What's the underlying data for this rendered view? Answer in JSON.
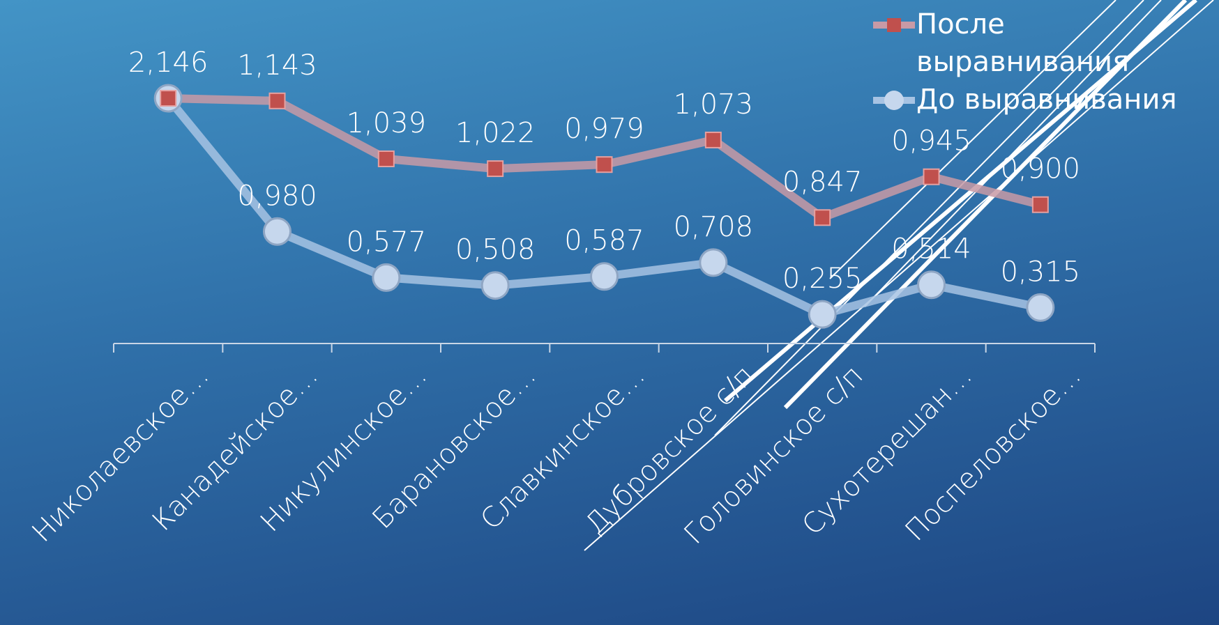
{
  "chart_data": {
    "type": "line",
    "stacked": true,
    "categories": [
      "Николаевское…",
      "Канадейское…",
      "Никулинское…",
      "Барановское…",
      "Славкинское…",
      "Дубровское с/п",
      "Головинское с/п",
      "Сухотерешан…",
      "Поспеловское…"
    ],
    "series": [
      {
        "name": "До выравнивания",
        "color": "#c6d7ed",
        "line_color": "#a7c3e3",
        "values": [
          2.146,
          0.98,
          0.577,
          0.508,
          0.587,
          0.708,
          0.255,
          0.514,
          0.315
        ],
        "value_labels": [
          "2,146",
          "0,980",
          "0,577",
          "0,508",
          "0,587",
          "0,708",
          "0,255",
          "0,514",
          "0,315"
        ]
      },
      {
        "name": "После выравнивания",
        "color": "#c0504d",
        "line_color": "#c89aa6",
        "values": [
          0,
          1.143,
          1.039,
          1.022,
          0.979,
          1.073,
          0.847,
          0.945,
          0.9
        ],
        "value_labels": [
          null,
          "1,143",
          "1,039",
          "1,022",
          "0,979",
          "1,073",
          "0,847",
          "0,945",
          "0,900"
        ]
      }
    ],
    "legend_order": [
      1,
      0
    ],
    "ylim": [
      0,
      3
    ]
  }
}
